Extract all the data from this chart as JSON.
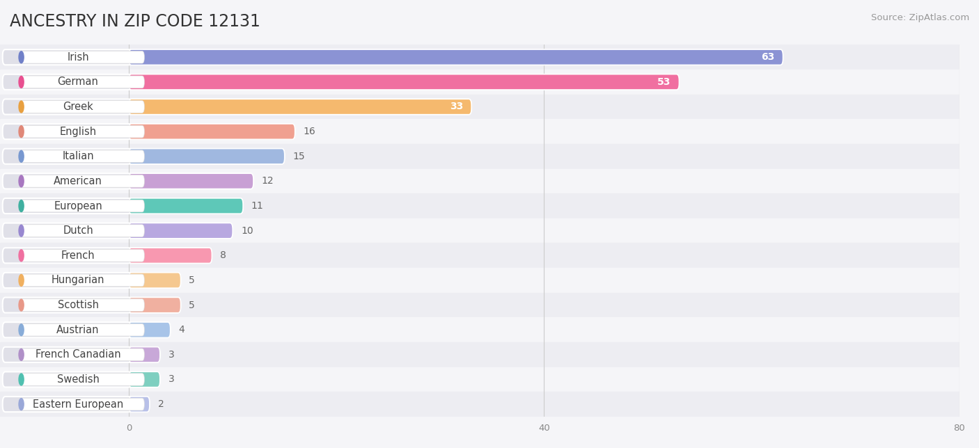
{
  "title": "ANCESTRY IN ZIP CODE 12131",
  "source": "Source: ZipAtlas.com",
  "categories": [
    "Irish",
    "German",
    "Greek",
    "English",
    "Italian",
    "American",
    "European",
    "Dutch",
    "French",
    "Hungarian",
    "Scottish",
    "Austrian",
    "French Canadian",
    "Swedish",
    "Eastern European"
  ],
  "values": [
    63,
    53,
    33,
    16,
    15,
    12,
    11,
    10,
    8,
    5,
    5,
    4,
    3,
    3,
    2
  ],
  "bar_colors": [
    "#8b93d4",
    "#f06fa0",
    "#f5b96e",
    "#f0a090",
    "#a0b8e0",
    "#c8a0d4",
    "#5ec8b8",
    "#b8a8e0",
    "#f898b0",
    "#f5c890",
    "#f0b0a0",
    "#a8c4e8",
    "#c8a8d8",
    "#7ecfc0",
    "#b8c0e8"
  ],
  "dot_colors": [
    "#7080c8",
    "#e85090",
    "#e8a040",
    "#e08878",
    "#7898d0",
    "#a878c0",
    "#40b0a0",
    "#9888d0",
    "#f070a0",
    "#f0b060",
    "#e89888",
    "#88acd8",
    "#b090c8",
    "#50c0b0",
    "#9aa8d8"
  ],
  "xlim_max": 80,
  "xticks": [
    0,
    40,
    80
  ],
  "background_color": "#f5f5f8",
  "row_colors": [
    "#ededf2",
    "#f5f5f8"
  ],
  "title_fontsize": 17,
  "label_fontsize": 10.5,
  "value_fontsize": 10,
  "source_fontsize": 9.5,
  "bar_height": 0.62,
  "inside_label_threshold": 30
}
